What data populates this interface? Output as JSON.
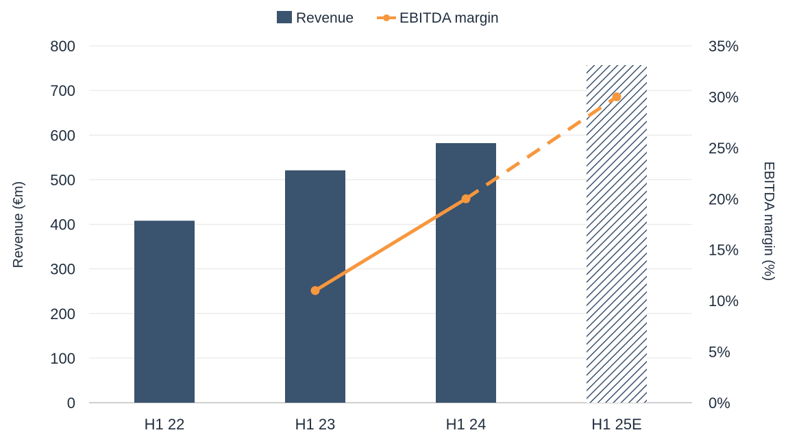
{
  "chart_data": {
    "type": "bar",
    "categories": [
      "H1 22",
      "H1 23",
      "H1 24",
      "H1 25E"
    ],
    "series": [
      {
        "name": "Revenue",
        "kind": "bar",
        "axis": "left",
        "values": [
          408,
          521,
          582,
          757
        ],
        "estimated": [
          false,
          false,
          false,
          true
        ]
      },
      {
        "name": "EBITDA margin",
        "kind": "line",
        "axis": "right",
        "values": [
          null,
          11,
          20,
          30
        ],
        "dashed_segments_from_index": 2
      }
    ],
    "ylabel": "Revenue (€m)",
    "ylim": [
      0,
      800
    ],
    "yticks": [
      "0",
      "100",
      "200",
      "300",
      "400",
      "500",
      "600",
      "700",
      "800"
    ],
    "y2label": "EBITDA margin (%)",
    "y2lim": [
      0,
      35
    ],
    "y2ticks": [
      "0%",
      "5%",
      "10%",
      "15%",
      "20%",
      "25%",
      "30%",
      "35%"
    ],
    "legend": {
      "position": "top-center",
      "entries": [
        "Revenue",
        "EBITDA margin"
      ]
    },
    "grid": true,
    "colors": {
      "bar": "#3a536e",
      "line": "#f7973e",
      "grid": "#e3e3e3",
      "text": "#1f2d3d"
    }
  }
}
